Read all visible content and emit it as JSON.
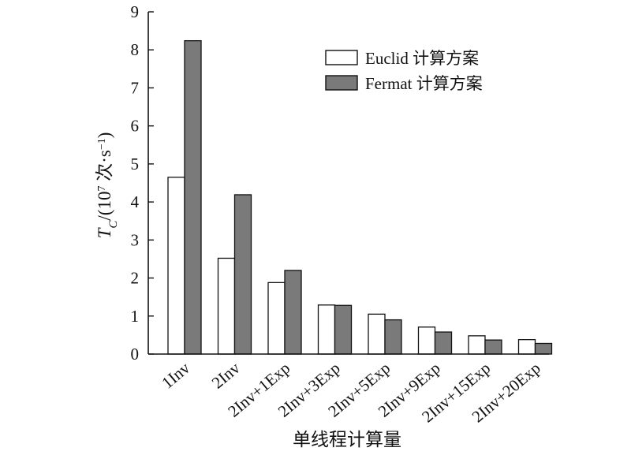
{
  "chart_data": {
    "type": "bar",
    "categories": [
      "1Inv",
      "2Inv",
      "2Inv+1Exp",
      "2Inv+3Exp",
      "2Inv+5Exp",
      "2Inv+9Exp",
      "2Inv+15Exp",
      "2Inv+20Exp"
    ],
    "series": [
      {
        "name": "Euclid 计算方案",
        "values": [
          4.65,
          2.52,
          1.88,
          1.29,
          1.05,
          0.71,
          0.48,
          0.38
        ],
        "color": "#ffffff"
      },
      {
        "name": "Fermat 计算方案",
        "values": [
          8.24,
          4.19,
          2.2,
          1.28,
          0.9,
          0.58,
          0.37,
          0.28
        ],
        "color": "#7a7a7a"
      }
    ],
    "xlabel": "单线程计算量",
    "ylabel": {
      "symbol": "T",
      "subscript": "C",
      "prefix": "/(10",
      "exponent": "7",
      "unit_text": " 次·s",
      "unit_exponent": "−1",
      "suffix": ")"
    },
    "ylim": [
      0,
      9
    ],
    "yticks": [
      "0",
      "1",
      "2",
      "3",
      "4",
      "5",
      "6",
      "7",
      "8",
      "9"
    ],
    "grid": false,
    "legend_position": "top-right"
  }
}
